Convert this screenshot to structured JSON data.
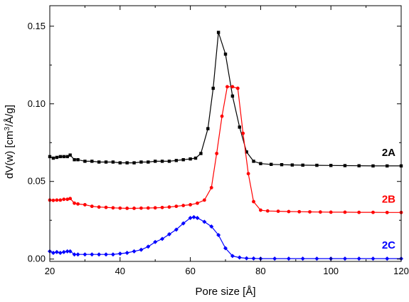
{
  "chart_data": {
    "type": "line",
    "xlabel": "Pore size [Å]",
    "ylabel_main": "dV(w) [cm",
    "ylabel_sup": "3",
    "ylabel_tail": "/Å/g]",
    "xlim": [
      20,
      120
    ],
    "ylim": [
      0,
      0.16
    ],
    "x_ticks": [
      20,
      40,
      60,
      80,
      100,
      120
    ],
    "y_ticks": [
      0,
      0.05,
      0.1,
      0.15
    ],
    "y_tick_labels": [
      "0.00",
      "0.05",
      "0.10",
      "0.15"
    ],
    "grid": false,
    "series": [
      {
        "name": "2A",
        "color": "#000000",
        "marker": "square",
        "x": [
          20,
          21,
          22,
          23,
          24,
          25,
          25.8,
          27,
          28,
          30,
          32,
          34,
          36,
          38,
          40,
          42,
          44,
          46,
          48,
          50,
          52,
          54,
          56,
          58,
          60,
          61.5,
          63,
          65,
          66.5,
          68,
          70,
          72,
          74,
          76,
          78,
          80,
          83,
          86,
          89,
          92,
          96,
          100,
          104,
          108,
          112,
          116,
          120
        ],
        "y": [
          0.066,
          0.065,
          0.0655,
          0.066,
          0.066,
          0.066,
          0.067,
          0.064,
          0.064,
          0.063,
          0.063,
          0.0625,
          0.0625,
          0.0625,
          0.062,
          0.062,
          0.062,
          0.0625,
          0.0625,
          0.063,
          0.063,
          0.063,
          0.0635,
          0.064,
          0.0645,
          0.065,
          0.068,
          0.084,
          0.11,
          0.146,
          0.132,
          0.105,
          0.085,
          0.069,
          0.063,
          0.0615,
          0.061,
          0.0608,
          0.0606,
          0.0605,
          0.0604,
          0.0603,
          0.0602,
          0.0601,
          0.06,
          0.06,
          0.06
        ]
      },
      {
        "name": "2B",
        "color": "#ff0000",
        "marker": "circle",
        "x": [
          20,
          21,
          22,
          23,
          24,
          25,
          25.8,
          27,
          28,
          30,
          32,
          34,
          36,
          38,
          40,
          42,
          44,
          46,
          48,
          50,
          52,
          54,
          56,
          58,
          60,
          62,
          64,
          66,
          67.5,
          69,
          70.5,
          72,
          73.5,
          75,
          76.5,
          78,
          80,
          82,
          85,
          88,
          91,
          94,
          97,
          100,
          104,
          108,
          112,
          116,
          120
        ],
        "y": [
          0.038,
          0.0378,
          0.038,
          0.038,
          0.0385,
          0.0385,
          0.039,
          0.036,
          0.0355,
          0.035,
          0.034,
          0.0335,
          0.0333,
          0.033,
          0.0328,
          0.0327,
          0.0327,
          0.0328,
          0.0329,
          0.033,
          0.0332,
          0.0335,
          0.034,
          0.0345,
          0.035,
          0.036,
          0.038,
          0.046,
          0.068,
          0.092,
          0.111,
          0.111,
          0.11,
          0.081,
          0.055,
          0.037,
          0.0315,
          0.031,
          0.0308,
          0.0306,
          0.0305,
          0.0304,
          0.0303,
          0.0302,
          0.0302,
          0.0301,
          0.0301,
          0.03,
          0.03
        ]
      },
      {
        "name": "2C",
        "color": "#0000ff",
        "marker": "diamond",
        "x": [
          20,
          21,
          22,
          23,
          24,
          25,
          25.8,
          27,
          28,
          30,
          32,
          34,
          36,
          38,
          40,
          42,
          44,
          46,
          48,
          50,
          52,
          54,
          56,
          58,
          60,
          61,
          62,
          64,
          66,
          68,
          70,
          72,
          74,
          76,
          78,
          80,
          84,
          88,
          92,
          96,
          100,
          104,
          108,
          112,
          116,
          120
        ],
        "y": [
          0.005,
          0.004,
          0.0045,
          0.004,
          0.0045,
          0.005,
          0.005,
          0.003,
          0.003,
          0.003,
          0.003,
          0.003,
          0.003,
          0.003,
          0.0035,
          0.004,
          0.005,
          0.006,
          0.008,
          0.011,
          0.013,
          0.016,
          0.019,
          0.023,
          0.0265,
          0.027,
          0.0265,
          0.024,
          0.021,
          0.0155,
          0.007,
          0.002,
          0.001,
          0.0005,
          0.0004,
          0.0003,
          0.0003,
          0.0003,
          0.0003,
          0.0003,
          0.0003,
          0.0003,
          0.0003,
          0.0003,
          0.0003,
          0.0003
        ]
      }
    ]
  }
}
